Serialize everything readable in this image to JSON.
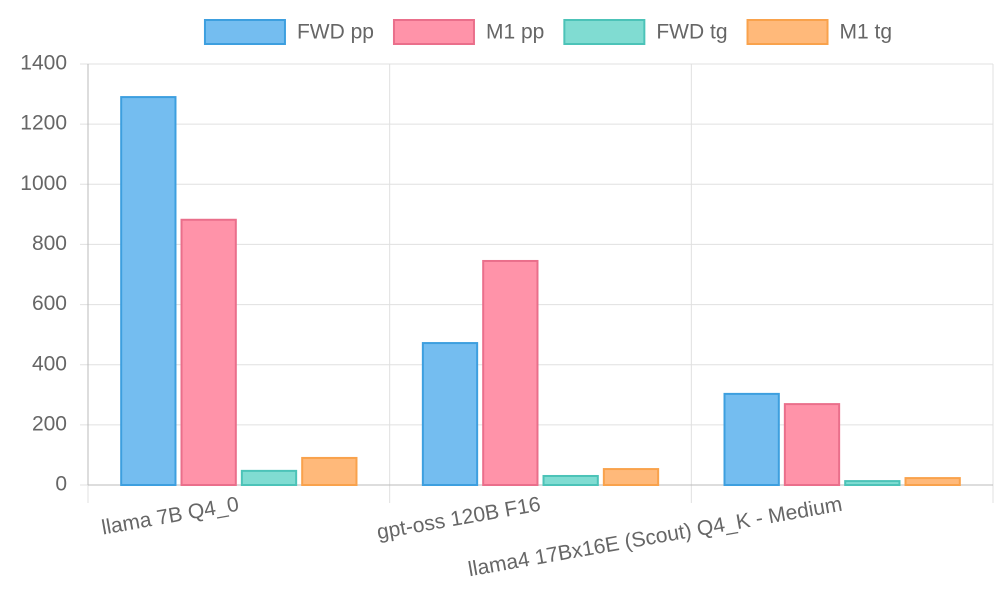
{
  "chart_data": {
    "type": "bar",
    "categories": [
      "llama 7B Q4_0",
      "gpt-oss 120B F16",
      "llama4 17Bx16E (Scout) Q4_K - Medium"
    ],
    "series": [
      {
        "name": "FWD pp",
        "color": "#74bdf0",
        "border": "#3d9fdf",
        "values": [
          1290,
          472,
          303
        ]
      },
      {
        "name": "M1 pp",
        "color": "#ff93a9",
        "border": "#ea6f8b",
        "values": [
          882,
          745,
          269
        ]
      },
      {
        "name": "FWD tg",
        "color": "#80dcd2",
        "border": "#4cc3b8",
        "values": [
          47,
          30,
          13
        ]
      },
      {
        "name": "M1 tg",
        "color": "#ffb97a",
        "border": "#f9a24c",
        "values": [
          90,
          53,
          23
        ]
      }
    ],
    "ylim": [
      0,
      1400
    ],
    "yticks": [
      0,
      200,
      400,
      600,
      800,
      1000,
      1200,
      1400
    ],
    "grid": true,
    "legend": "top"
  }
}
